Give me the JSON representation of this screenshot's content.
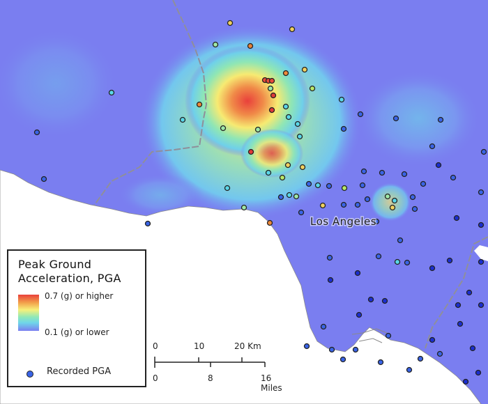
{
  "map": {
    "city_label": "Los Angeles"
  },
  "legend": {
    "title_line1": "Peak Ground",
    "title_line2": "Acceleration, PGA",
    "high_label": "0.7 (g) or higher",
    "low_label": "0.1 (g) or lower",
    "station_label": "Recorded PGA"
  },
  "scale_bar": {
    "km_labels": [
      "0",
      "10",
      "20 Km"
    ],
    "mile_labels": [
      "0",
      "8",
      "16 Miles"
    ]
  },
  "colors": {
    "ocean": "#ffffff",
    "low": "#7a7ef0",
    "high": "#e9403b",
    "station_default": "#3a64e6"
  },
  "stations": [
    {
      "pga": 0.45,
      "color": "#e8833a"
    },
    {
      "pga": 0.62,
      "color": "#e84b3a"
    },
    {
      "pga": 0.55,
      "color": "#ee6a3a"
    },
    {
      "pga": 0.35,
      "color": "#f0d060"
    },
    {
      "pga": 0.65,
      "color": "#e03a38"
    },
    {
      "pga": 0.3,
      "color": "#b8e86a"
    },
    {
      "pga": 0.15,
      "color": "#5ad6e8"
    },
    {
      "pga": 0.4,
      "color": "#f0c040"
    },
    {
      "pga": 0.12,
      "color": "#3a64e6"
    }
  ]
}
